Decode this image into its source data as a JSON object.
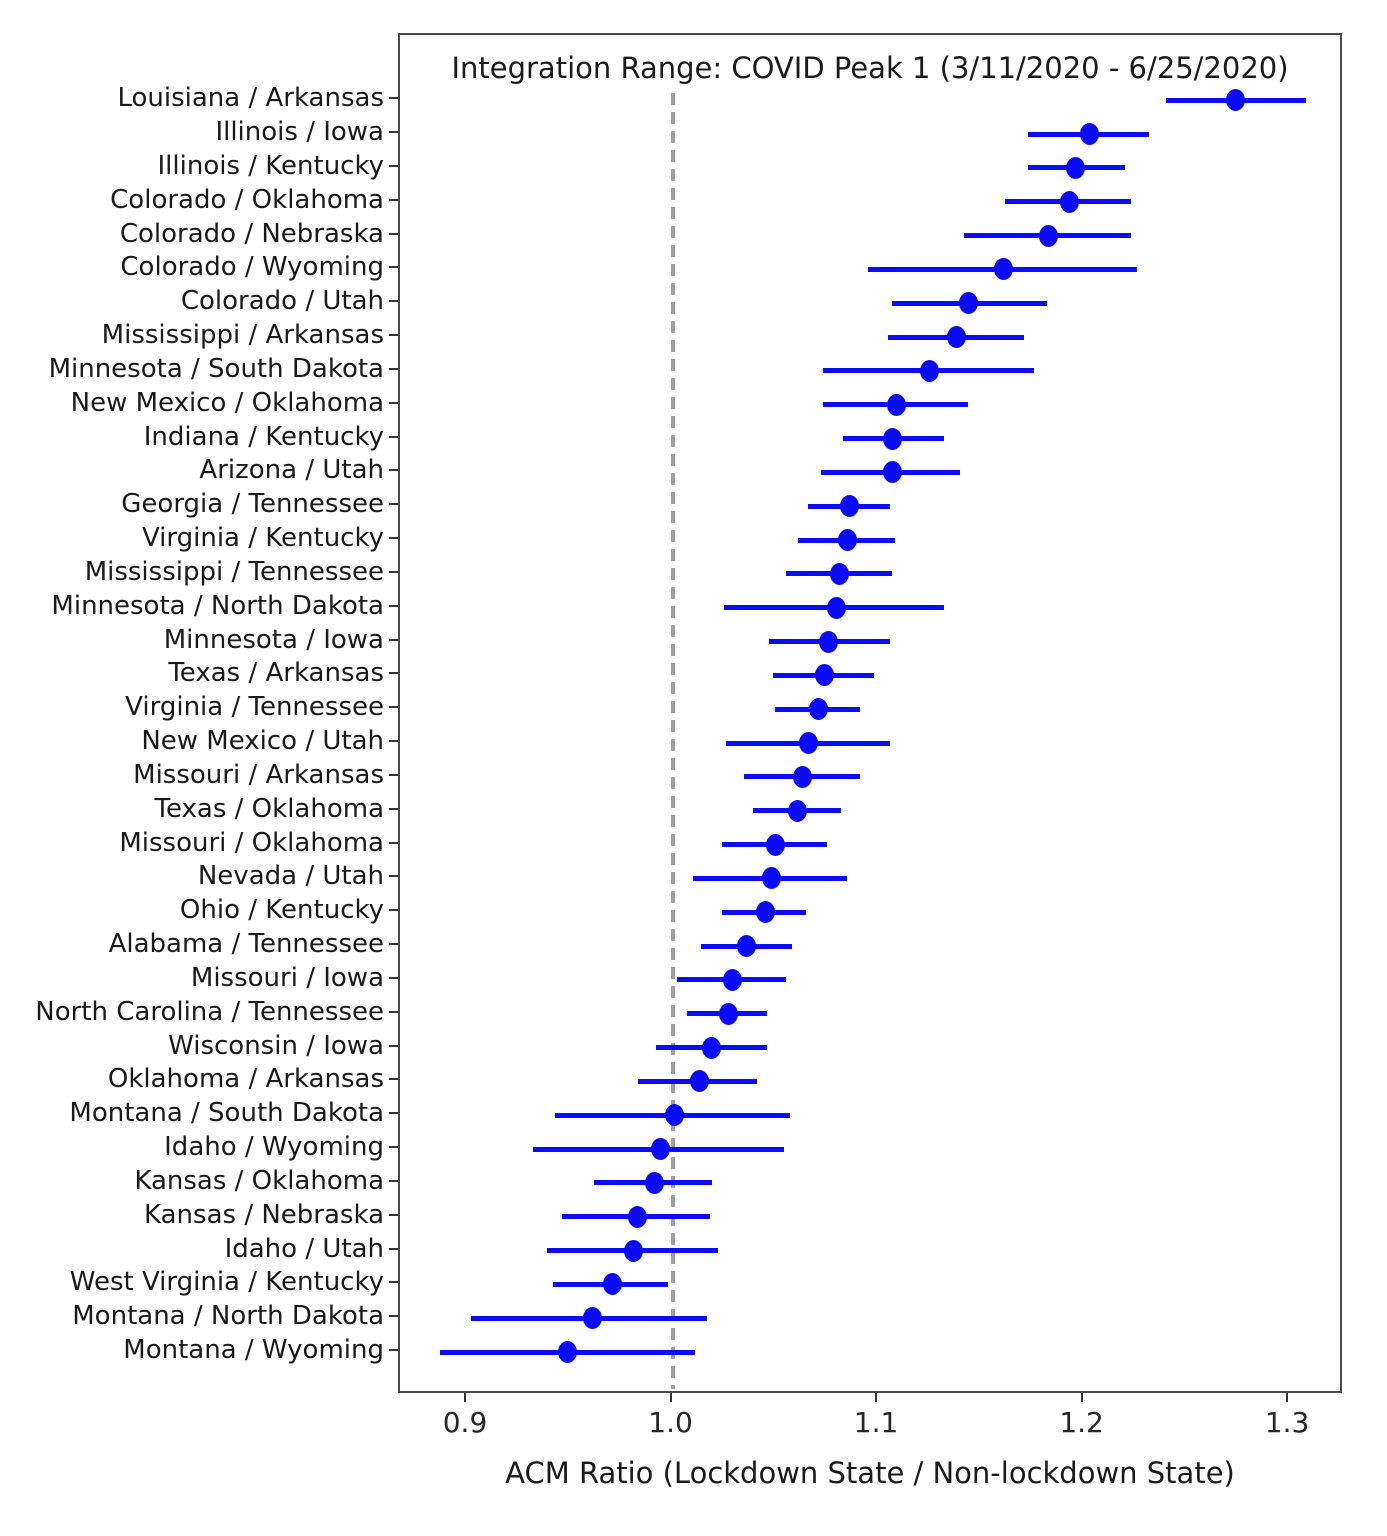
{
  "chart_data": {
    "type": "scatter",
    "subtype": "horizontal dot plot with error bars (forest plot)",
    "title": "Integration Range: COVID Peak 1 (3/11/2020 - 6/25/2020)",
    "xlabel": "ACM Ratio (Lockdown State / Non-lockdown State)",
    "ylabel": "",
    "x_tick_labels": [
      "0.9",
      "1.0",
      "1.1",
      "1.2",
      "1.3"
    ],
    "x_tick_values": [
      0.9,
      1.0,
      1.1,
      1.2,
      1.3
    ],
    "xlim": [
      0.8674,
      1.3267
    ],
    "grid": false,
    "legend_position": "none",
    "reference_line": {
      "x": 1.0,
      "style": "dashed",
      "color": "#a0a0a0"
    },
    "categories": [
      "Louisiana / Arkansas",
      "Illinois / Iowa",
      "Illinois / Kentucky",
      "Colorado / Oklahoma",
      "Colorado / Nebraska",
      "Colorado / Wyoming",
      "Colorado / Utah",
      "Mississippi / Arkansas",
      "Minnesota / South Dakota",
      "New Mexico / Oklahoma",
      "Indiana / Kentucky",
      "Arizona / Utah",
      "Georgia / Tennessee",
      "Virginia / Kentucky",
      "Mississippi / Tennessee",
      "Minnesota / North Dakota",
      "Minnesota / Iowa",
      "Texas / Arkansas",
      "Virginia / Tennessee",
      "New Mexico / Utah",
      "Missouri / Arkansas",
      "Texas / Oklahoma",
      "Missouri / Oklahoma",
      "Nevada / Utah",
      "Ohio / Kentucky",
      "Alabama / Tennessee",
      "Missouri / Iowa",
      "North Carolina / Tennessee",
      "Wisconsin / Iowa",
      "Oklahoma / Arkansas",
      "Montana / South Dakota",
      "Idaho / Wyoming",
      "Kansas / Oklahoma",
      "Kansas / Nebraska",
      "Idaho / Utah",
      "West Virginia / Kentucky",
      "Montana / North Dakota",
      "Montana / Wyoming"
    ],
    "series": [
      {
        "name": "ACM Ratio",
        "values": [
          1.274,
          1.203,
          1.196,
          1.193,
          1.183,
          1.161,
          1.144,
          1.138,
          1.125,
          1.109,
          1.107,
          1.107,
          1.086,
          1.085,
          1.081,
          1.08,
          1.076,
          1.074,
          1.071,
          1.066,
          1.063,
          1.061,
          1.05,
          1.048,
          1.045,
          1.036,
          1.029,
          1.027,
          1.019,
          1.013,
          1.001,
          0.994,
          0.991,
          0.983,
          0.981,
          0.971,
          0.961,
          0.949
        ],
        "ci_low": [
          1.24,
          1.173,
          1.173,
          1.162,
          1.142,
          1.095,
          1.107,
          1.105,
          1.073,
          1.073,
          1.083,
          1.072,
          1.066,
          1.061,
          1.055,
          1.025,
          1.047,
          1.049,
          1.05,
          1.026,
          1.035,
          1.039,
          1.024,
          1.01,
          1.024,
          1.014,
          1.002,
          1.007,
          0.992,
          0.983,
          0.943,
          0.932,
          0.962,
          0.946,
          0.939,
          0.942,
          0.902,
          0.887
        ],
        "ci_high": [
          1.308,
          1.232,
          1.22,
          1.223,
          1.223,
          1.226,
          1.182,
          1.171,
          1.176,
          1.144,
          1.132,
          1.14,
          1.106,
          1.108,
          1.107,
          1.132,
          1.106,
          1.098,
          1.091,
          1.106,
          1.091,
          1.082,
          1.075,
          1.085,
          1.065,
          1.058,
          1.055,
          1.046,
          1.046,
          1.041,
          1.057,
          1.054,
          1.019,
          1.018,
          1.022,
          0.998,
          1.017,
          1.011
        ]
      }
    ]
  },
  "colors": {
    "marker": "#0b0bf5",
    "reference_dash": "#a0a0a0",
    "spine": "#4a4a4a",
    "tick": "#333333",
    "text": "#1a1a1a"
  }
}
